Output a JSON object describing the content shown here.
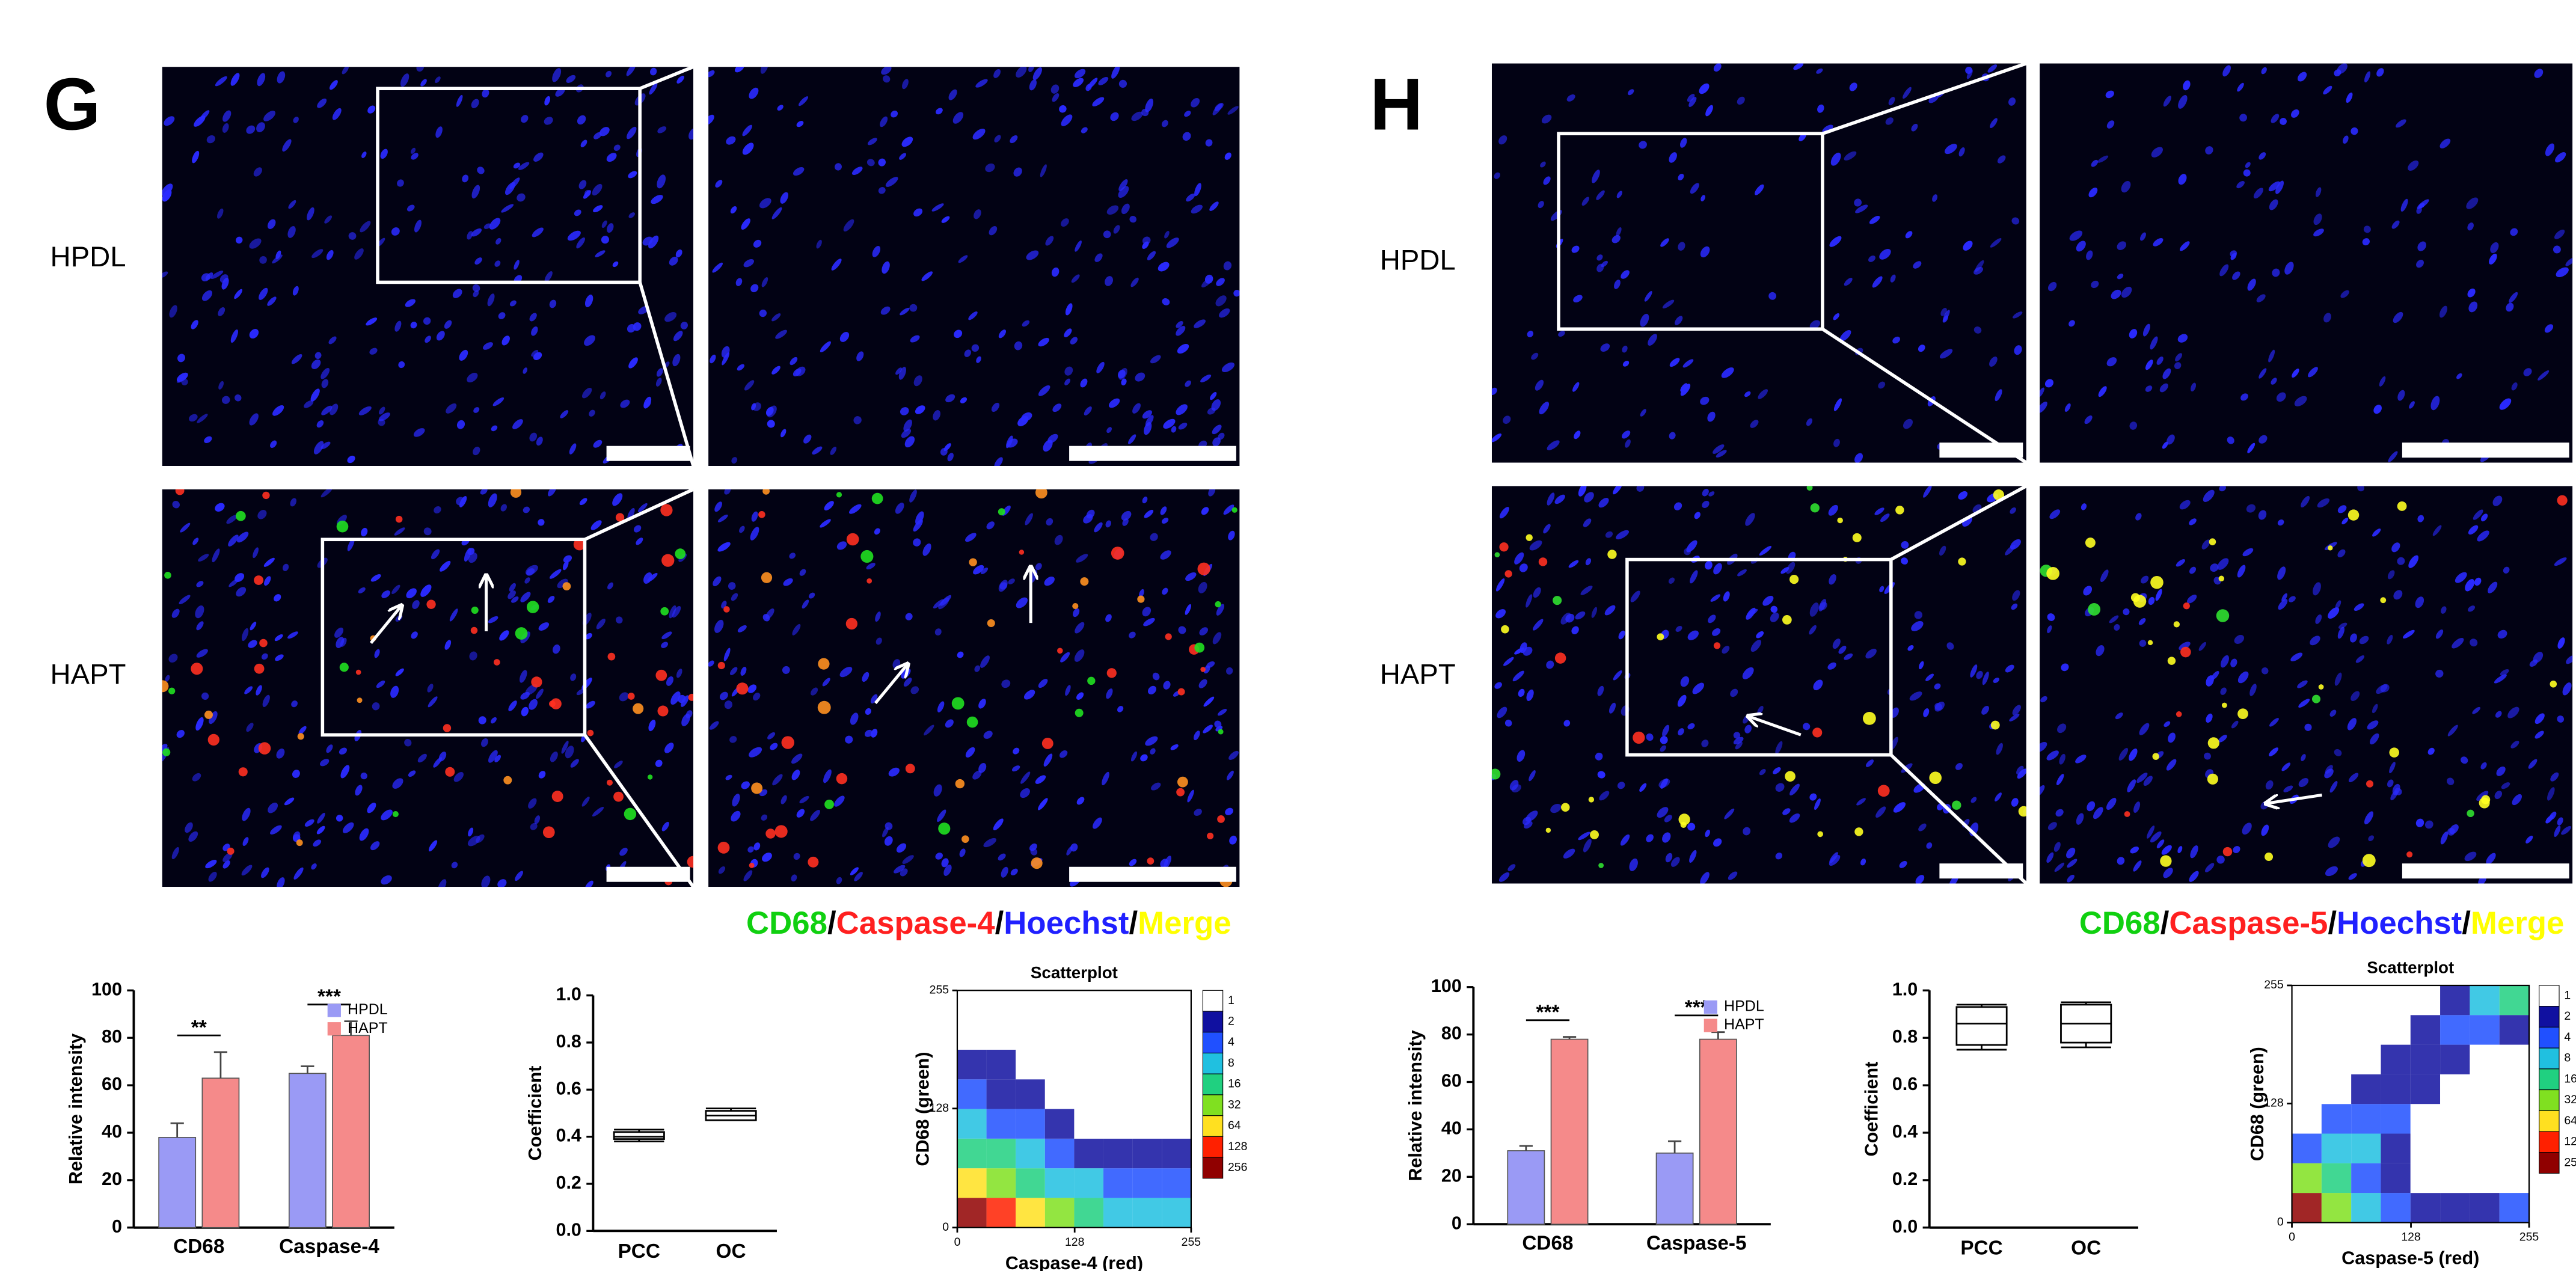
{
  "panels": [
    {
      "label": "G",
      "rows": [
        "HPDL",
        "HAPT"
      ],
      "stain": [
        "CD68",
        "/",
        "Caspase-4",
        "/",
        "Hoechst",
        "/",
        "Merge"
      ],
      "stain_colors": [
        "#10d010",
        "#000000",
        "#ff2020",
        "#000000",
        "#2020ff",
        "#000000",
        "#ffff00"
      ]
    },
    {
      "label": "H",
      "rows": [
        "HPDL",
        "HAPT"
      ],
      "stain": [
        "CD68",
        "/",
        "Caspase-5",
        "/",
        "Hoechst",
        "/",
        "Merge"
      ],
      "stain_colors": [
        "#10d010",
        "#000000",
        "#ff2020",
        "#000000",
        "#2020ff",
        "#000000",
        "#ffff00"
      ]
    }
  ],
  "chart_data": [
    {
      "type": "bar",
      "ylabel": "Relative intensity",
      "categories": [
        "CD68",
        "Caspase-4"
      ],
      "series": [
        {
          "name": "HPDL",
          "color": "#9a9af5",
          "values": [
            38,
            65
          ],
          "errors": [
            6,
            3
          ]
        },
        {
          "name": "HAPT",
          "color": "#f58a8a",
          "values": [
            63,
            81
          ],
          "errors": [
            11,
            6
          ]
        }
      ],
      "annotations": [
        "**",
        "***"
      ],
      "ylim": [
        0,
        100
      ],
      "yticks": [
        0,
        20,
        40,
        60,
        80,
        100
      ],
      "legend": "upper right"
    },
    {
      "type": "box",
      "ylabel": "Coefficient",
      "categories": [
        "PCC",
        "OC"
      ],
      "boxes": [
        {
          "min": 0.38,
          "q1": 0.39,
          "median": 0.4,
          "q3": 0.42,
          "max": 0.43
        },
        {
          "min": 0.47,
          "q1": 0.47,
          "median": 0.49,
          "q3": 0.51,
          "max": 0.52
        }
      ],
      "ylim": [
        0,
        1
      ],
      "yticks": [
        {
          "value": 0,
          "label": "0.0"
        },
        0.2,
        0.4,
        0.6,
        0.8,
        {
          "value": 1,
          "label": "1.0"
        }
      ]
    },
    {
      "type": "heatmap",
      "title": "Scatterplot",
      "xlabel": "Caspase-4 (red)",
      "ylabel": "CD68 (green)",
      "xlim": [
        0,
        255
      ],
      "ylim": [
        0,
        255
      ],
      "xticks": [
        0,
        128,
        255
      ],
      "yticks": [
        0,
        128,
        255
      ],
      "z": [
        [
          256,
          128,
          64,
          32,
          16,
          8,
          8,
          8
        ],
        [
          64,
          32,
          16,
          8,
          8,
          4,
          4,
          4
        ],
        [
          16,
          16,
          8,
          4,
          2,
          2,
          2,
          2
        ],
        [
          8,
          4,
          4,
          2,
          1,
          1,
          1,
          1
        ],
        [
          4,
          2,
          2,
          1,
          1,
          1,
          1,
          null
        ],
        [
          2,
          2,
          1,
          1,
          1,
          1,
          1,
          null
        ],
        [
          1,
          1,
          1,
          1,
          null,
          null,
          null,
          null
        ],
        [
          1,
          1,
          null,
          null,
          null,
          null,
          null,
          null
        ]
      ],
      "colorbar_ticks": [
        1,
        2,
        4,
        8,
        16,
        32,
        64,
        128,
        256
      ],
      "colorbar_colors": [
        "#ffffff",
        "#1010a0",
        "#2050ff",
        "#20c0e0",
        "#20d080",
        "#80e020",
        "#ffe020",
        "#ff2000",
        "#900000"
      ]
    },
    {
      "type": "bar",
      "ylabel": "Relative intensity",
      "categories": [
        "CD68",
        "Caspase-5"
      ],
      "series": [
        {
          "name": "HPDL",
          "color": "#9a9af5",
          "values": [
            31,
            30
          ],
          "errors": [
            2,
            5
          ]
        },
        {
          "name": "HAPT",
          "color": "#f58a8a",
          "values": [
            78,
            78
          ],
          "errors": [
            1,
            3
          ]
        }
      ],
      "annotations": [
        "***",
        "***"
      ],
      "ylim": [
        0,
        100
      ],
      "yticks": [
        0,
        20,
        40,
        60,
        80,
        100
      ],
      "legend": "upper right"
    },
    {
      "type": "box",
      "ylabel": "Coefficient",
      "categories": [
        "PCC",
        "OC"
      ],
      "boxes": [
        {
          "min": 0.75,
          "q1": 0.77,
          "median": 0.86,
          "q3": 0.93,
          "max": 0.94
        },
        {
          "min": 0.76,
          "q1": 0.78,
          "median": 0.86,
          "q3": 0.94,
          "max": 0.95
        }
      ],
      "ylim": [
        0,
        1
      ],
      "yticks": [
        {
          "value": 0,
          "label": "0.0"
        },
        0.2,
        0.4,
        0.6,
        0.8,
        {
          "value": 1,
          "label": "1.0"
        }
      ]
    },
    {
      "type": "heatmap",
      "title": "Scatterplot",
      "xlabel": "Caspase-5 (red)",
      "ylabel": "CD68 (green)",
      "xlim": [
        0,
        255
      ],
      "ylim": [
        0,
        255
      ],
      "xticks": [
        0,
        128,
        255
      ],
      "yticks": [
        0,
        128,
        255
      ],
      "z": [
        [
          256,
          32,
          8,
          4,
          2,
          2,
          2,
          4
        ],
        [
          32,
          16,
          4,
          2,
          1,
          1,
          null,
          null
        ],
        [
          4,
          8,
          8,
          2,
          1,
          null,
          null,
          null
        ],
        [
          1,
          4,
          4,
          4,
          1,
          null,
          null,
          null
        ],
        [
          null,
          1,
          2,
          2,
          2,
          1,
          null,
          null
        ],
        [
          null,
          null,
          1,
          2,
          2,
          2,
          1,
          null
        ],
        [
          null,
          null,
          null,
          1,
          2,
          4,
          4,
          2
        ],
        [
          null,
          null,
          null,
          null,
          1,
          2,
          8,
          16
        ]
      ],
      "colorbar_ticks": [
        1,
        2,
        4,
        8,
        16,
        32,
        64,
        128,
        256
      ],
      "colorbar_colors": [
        "#ffffff",
        "#1010a0",
        "#2050ff",
        "#20c0e0",
        "#20d080",
        "#80e020",
        "#ffe020",
        "#ff2000",
        "#900000"
      ]
    }
  ]
}
